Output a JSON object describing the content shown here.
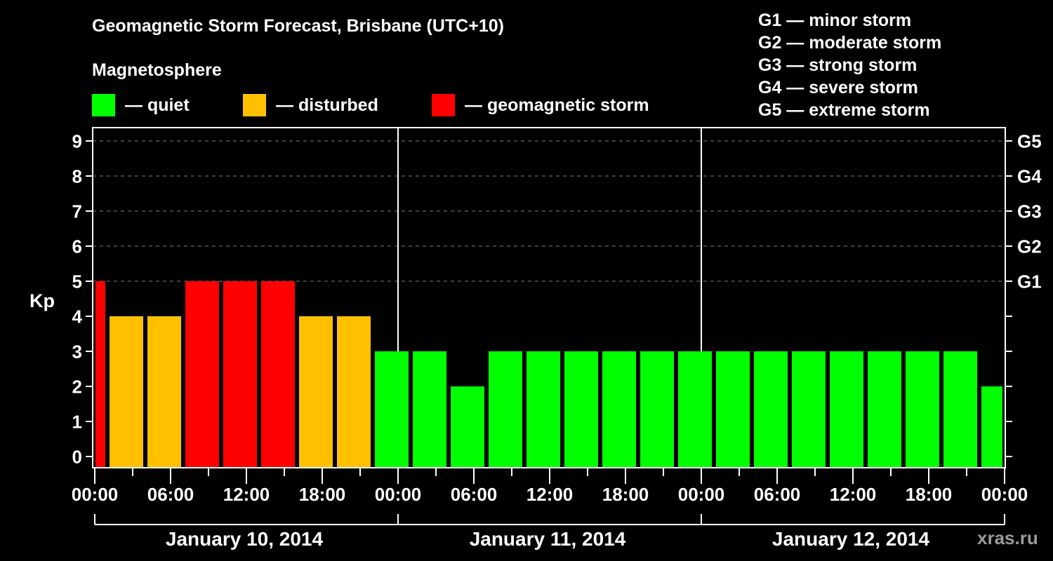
{
  "header": {
    "title": "Geomagnetic Storm Forecast, Brisbane (UTC+10)",
    "subtitle": "Magnetosphere"
  },
  "legend": [
    {
      "label": "— quiet",
      "color": "#00ff00"
    },
    {
      "label": "— disturbed",
      "color": "#ffc000"
    },
    {
      "label": "— geomagnetic storm",
      "color": "#ff0000"
    }
  ],
  "g_legend": [
    "G1 — minor storm",
    "G2 — moderate storm",
    "G3 — strong storm",
    "G4 — severe storm",
    "G5 — extreme storm"
  ],
  "axes": {
    "ylabel": "Kp",
    "y_ticks": [
      "0",
      "1",
      "2",
      "3",
      "4",
      "5",
      "6",
      "7",
      "8",
      "9"
    ],
    "g_ticks": [
      {
        "label": "G1",
        "kp": 5
      },
      {
        "label": "G2",
        "kp": 6
      },
      {
        "label": "G3",
        "kp": 7
      },
      {
        "label": "G4",
        "kp": 8
      },
      {
        "label": "G5",
        "kp": 9
      }
    ],
    "x_ticks": [
      "00:00",
      "06:00",
      "12:00",
      "18:00",
      "00:00",
      "06:00",
      "12:00",
      "18:00",
      "00:00",
      "06:00",
      "12:00",
      "18:00",
      "00:00"
    ],
    "dates": [
      "January 10, 2014",
      "January 11, 2014",
      "January 12, 2014"
    ]
  },
  "watermark": "xras.ru",
  "colors": {
    "quiet": "#00ff00",
    "disturbed": "#ffc000",
    "storm": "#ff0000",
    "background": "#000000",
    "axis": "#ffffff",
    "grid": "#808080"
  },
  "chart_data": {
    "type": "bar",
    "title": "Geomagnetic Storm Forecast, Brisbane (UTC+10)",
    "subtitle": "Magnetosphere",
    "xlabel": "",
    "ylabel": "Kp",
    "ylim": [
      0,
      9
    ],
    "grid": "dashed horizontal at Kp 5-9",
    "legend_position": "top",
    "secondary_y_labels": {
      "5": "G1",
      "6": "G2",
      "7": "G3",
      "8": "G4",
      "9": "G5"
    },
    "x_range": [
      "2014-01-10 00:00",
      "2014-01-13 00:00"
    ],
    "categories": [
      "Jan 10 00:00-01:00",
      "Jan 10 01:00-04:00",
      "Jan 10 04:00-07:00",
      "Jan 10 07:00-10:00",
      "Jan 10 10:00-13:00",
      "Jan 10 13:00-16:00",
      "Jan 10 16:00-19:00",
      "Jan 10 19:00-22:00",
      "Jan 10 22:00-Jan 11 01:00",
      "Jan 11 01:00-04:00",
      "Jan 11 04:00-07:00",
      "Jan 11 07:00-10:00",
      "Jan 11 10:00-13:00",
      "Jan 11 13:00-16:00",
      "Jan 11 16:00-19:00",
      "Jan 11 19:00-22:00",
      "Jan 11 22:00-Jan 12 01:00",
      "Jan 12 01:00-04:00",
      "Jan 12 04:00-07:00",
      "Jan 12 07:00-10:00",
      "Jan 12 10:00-13:00",
      "Jan 12 13:00-16:00",
      "Jan 12 16:00-19:00",
      "Jan 12 19:00-22:00",
      "Jan 12 22:00-Jan 13 00:00"
    ],
    "values": [
      5,
      4,
      4,
      5,
      5,
      5,
      4,
      4,
      3,
      3,
      2,
      3,
      3,
      3,
      3,
      3,
      3,
      3,
      3,
      3,
      3,
      3,
      3,
      3,
      2
    ],
    "status": [
      "storm",
      "disturbed",
      "disturbed",
      "storm",
      "storm",
      "storm",
      "disturbed",
      "disturbed",
      "quiet",
      "quiet",
      "quiet",
      "quiet",
      "quiet",
      "quiet",
      "quiet",
      "quiet",
      "quiet",
      "quiet",
      "quiet",
      "quiet",
      "quiet",
      "quiet",
      "quiet",
      "quiet",
      "quiet"
    ]
  }
}
